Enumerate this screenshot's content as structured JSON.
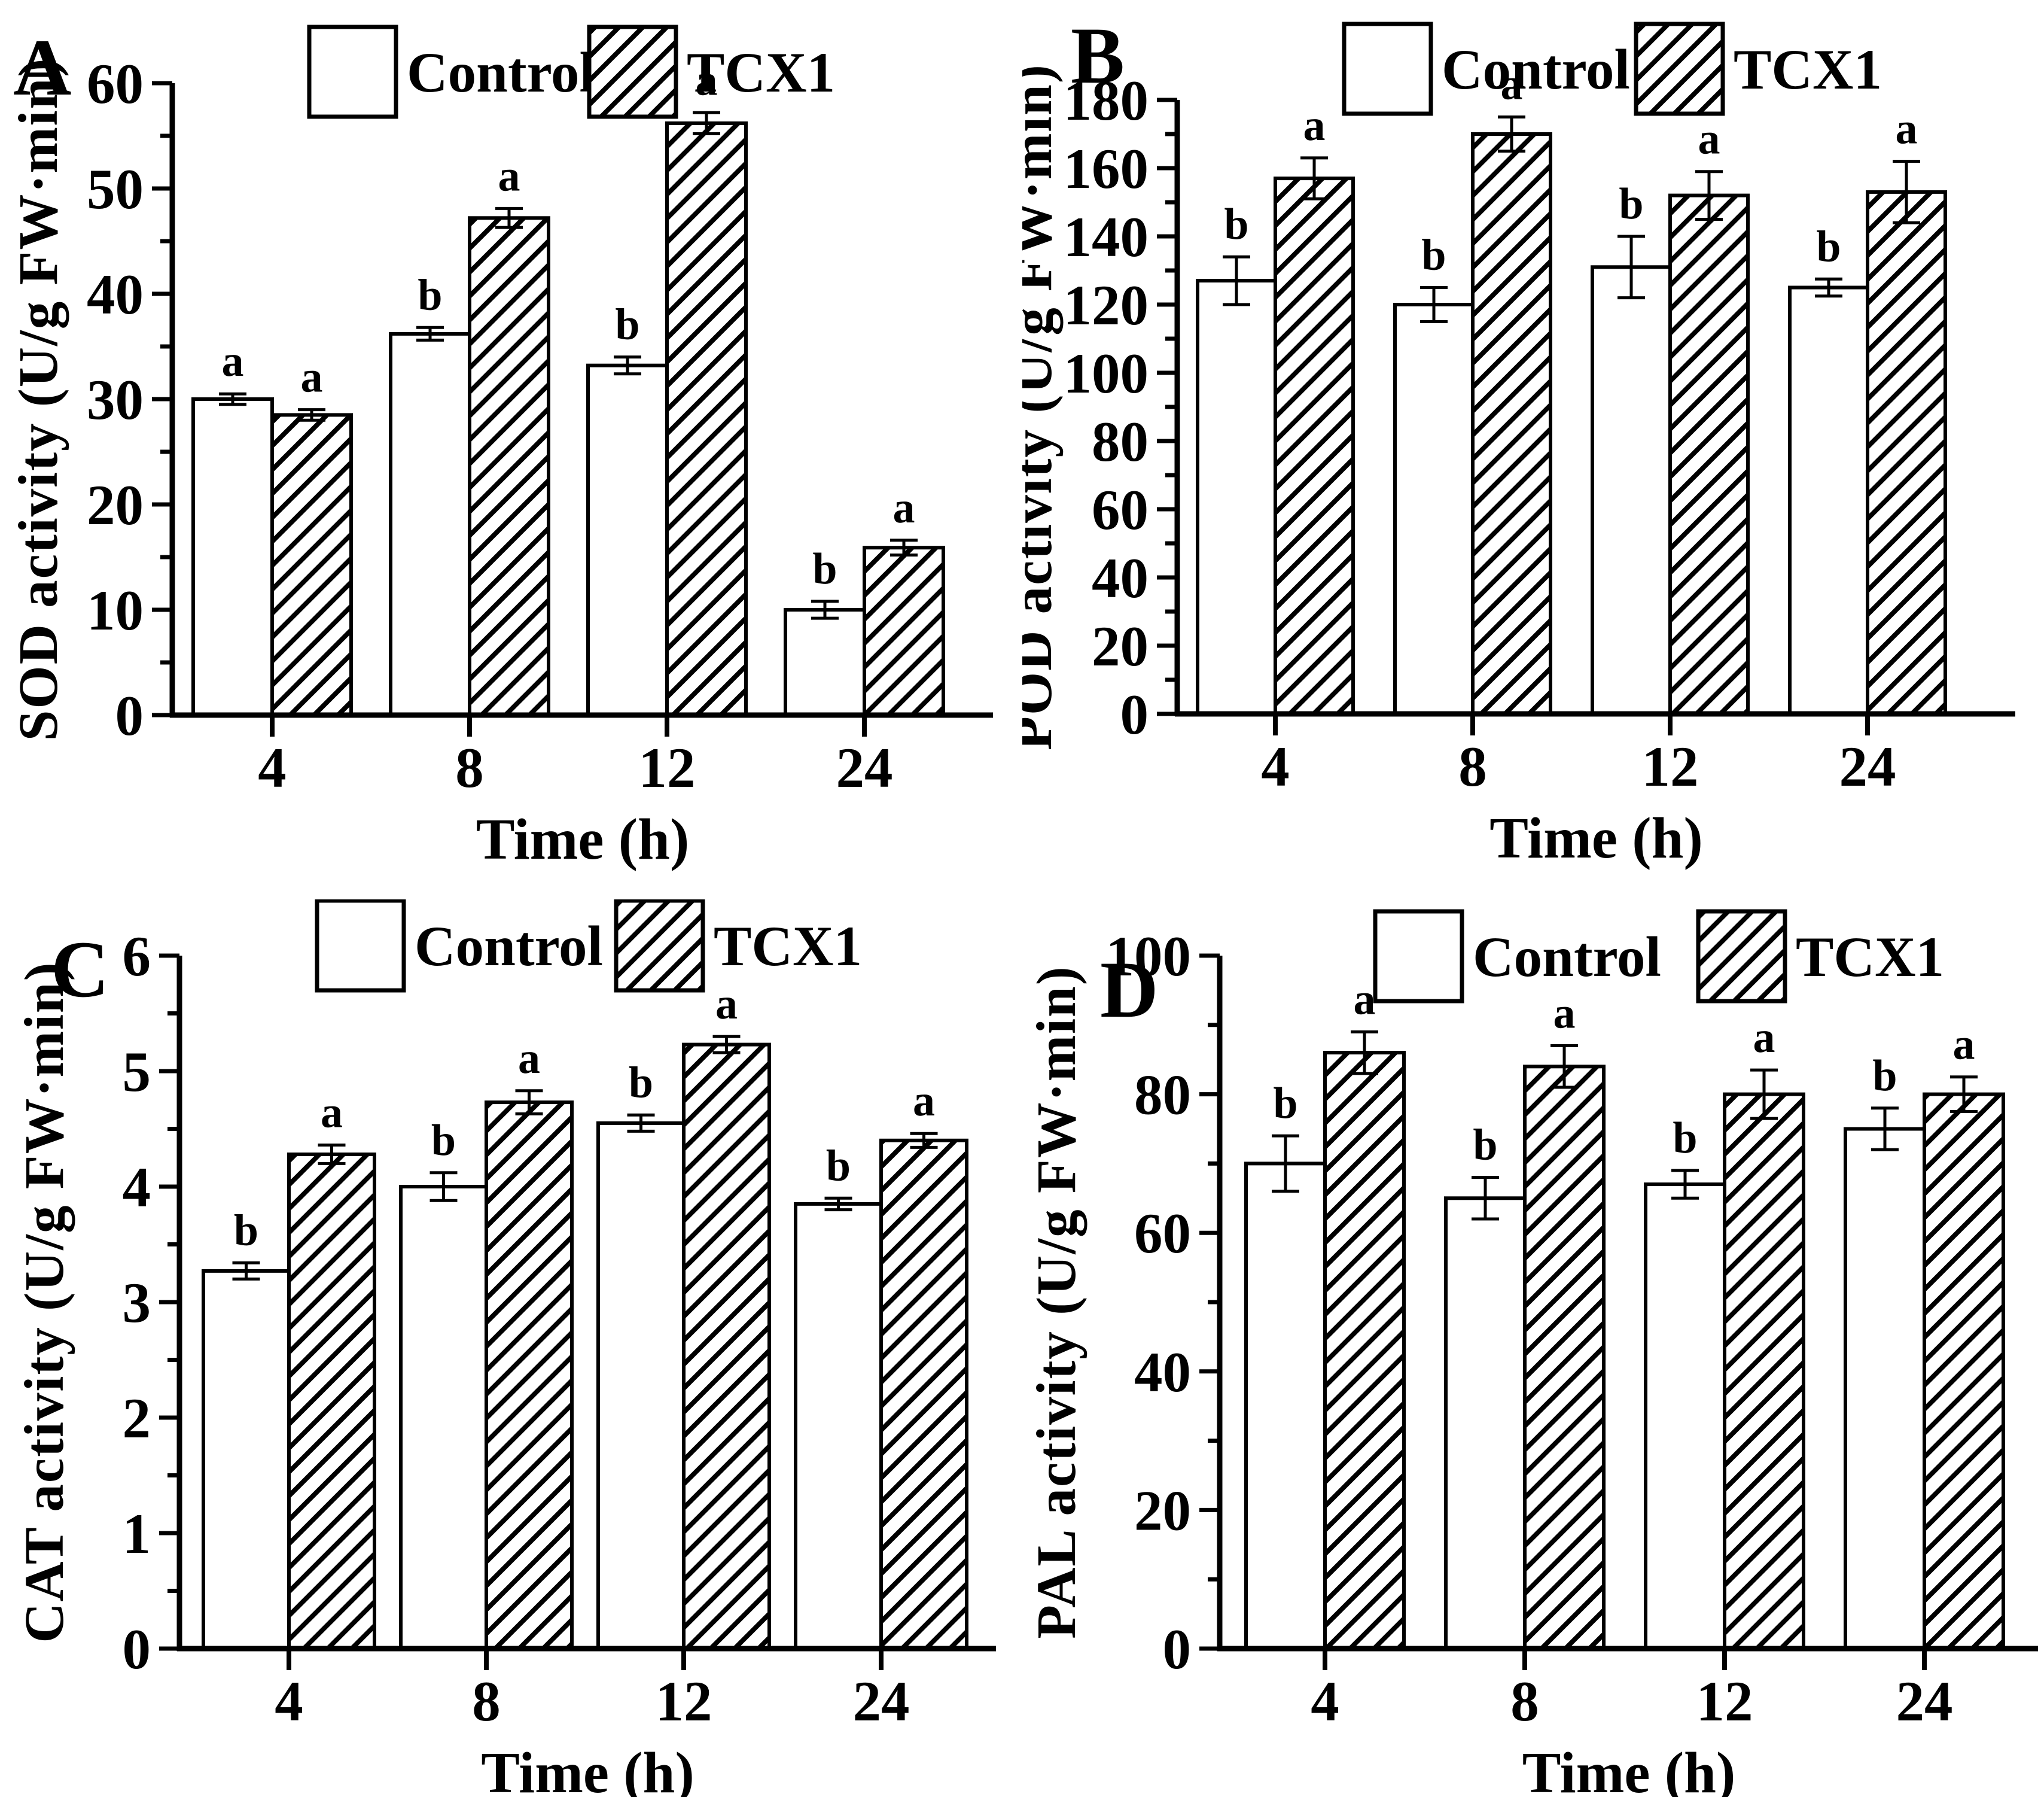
{
  "figure": {
    "background": "#ffffff",
    "ink_color": "#000000",
    "legend_labels": [
      "Control",
      "TCX1"
    ],
    "xlabel": "Time (h)",
    "categories": [
      "4",
      "8",
      "12",
      "24"
    ]
  },
  "chart_data": [
    {
      "type": "bar",
      "panel_label": "A",
      "title": "",
      "xlabel": "Time (h)",
      "ylabel": "SOD activity (U/g FW·min)",
      "categories": [
        "4",
        "8",
        "12",
        "24"
      ],
      "ylim": [
        0,
        60
      ],
      "ytick_step": 10,
      "yminor_step": 5,
      "grid": false,
      "legend_position": "top",
      "series": [
        {
          "name": "Control",
          "fill": "white",
          "values": [
            30,
            36.2,
            33.2,
            10
          ],
          "errors": [
            0.5,
            0.6,
            0.8,
            0.8
          ],
          "letters": [
            "a",
            "b",
            "b",
            "b"
          ]
        },
        {
          "name": "TCX1",
          "fill": "hatch",
          "values": [
            28.5,
            47.2,
            56.2,
            15.9
          ],
          "errors": [
            0.5,
            0.9,
            1.0,
            0.7
          ],
          "letters": [
            "a",
            "a",
            "a",
            "a"
          ]
        }
      ]
    },
    {
      "type": "bar",
      "panel_label": "B",
      "title": "",
      "xlabel": "Time (h)",
      "ylabel": "POD activity (U/g FW·min)",
      "categories": [
        "4",
        "8",
        "12",
        "24"
      ],
      "ylim": [
        0,
        180
      ],
      "ytick_step": 20,
      "yminor_step": 10,
      "grid": false,
      "legend_position": "top",
      "series": [
        {
          "name": "Control",
          "fill": "white",
          "values": [
            127,
            120,
            131,
            125
          ],
          "errors": [
            7,
            5,
            9,
            2.5
          ],
          "letters": [
            "b",
            "b",
            "b",
            "b"
          ]
        },
        {
          "name": "TCX1",
          "fill": "hatch",
          "values": [
            157,
            170,
            152,
            153
          ],
          "errors": [
            6,
            5,
            7,
            9
          ],
          "letters": [
            "a",
            "a",
            "a",
            "a"
          ]
        }
      ]
    },
    {
      "type": "bar",
      "panel_label": "C",
      "title": "",
      "xlabel": "Time (h)",
      "ylabel": "CAT activity (U/g FW·min)",
      "categories": [
        "4",
        "8",
        "12",
        "24"
      ],
      "ylim": [
        0,
        6
      ],
      "ytick_step": 1,
      "yminor_step": 0.5,
      "grid": false,
      "legend_position": "top",
      "series": [
        {
          "name": "Control",
          "fill": "white",
          "values": [
            3.27,
            4.0,
            4.55,
            3.85
          ],
          "errors": [
            0.07,
            0.12,
            0.07,
            0.05
          ],
          "letters": [
            "b",
            "b",
            "b",
            "b"
          ]
        },
        {
          "name": "TCX1",
          "fill": "hatch",
          "values": [
            4.28,
            4.73,
            5.23,
            4.4
          ],
          "errors": [
            0.08,
            0.1,
            0.07,
            0.06
          ],
          "letters": [
            "a",
            "a",
            "a",
            "a"
          ]
        }
      ]
    },
    {
      "type": "bar",
      "panel_label": "D",
      "title": "",
      "xlabel": "Time (h)",
      "ylabel": "PAL activity (U/g FW·min)",
      "categories": [
        "4",
        "8",
        "12",
        "24"
      ],
      "ylim": [
        0,
        100
      ],
      "ytick_step": 20,
      "yminor_step": 10,
      "grid": false,
      "legend_position": "top",
      "series": [
        {
          "name": "Control",
          "fill": "white",
          "values": [
            70,
            65,
            67,
            75
          ],
          "errors": [
            4,
            3,
            2,
            3
          ],
          "letters": [
            "b",
            "b",
            "b",
            "b"
          ]
        },
        {
          "name": "TCX1",
          "fill": "hatch",
          "values": [
            86,
            84,
            80,
            80
          ],
          "errors": [
            3,
            3,
            3.5,
            2.5
          ],
          "letters": [
            "a",
            "a",
            "a",
            "a"
          ]
        }
      ]
    }
  ]
}
